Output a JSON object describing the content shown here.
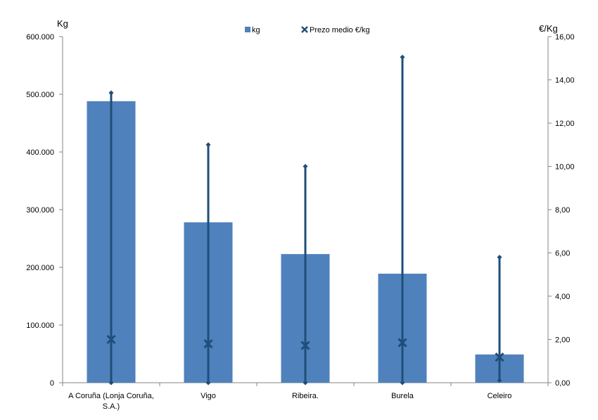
{
  "chart_data": {
    "type": "bar",
    "categories": [
      [
        "A Coruña (Lonja Coruña,",
        "S.A.)"
      ],
      [
        "Vigo"
      ],
      [
        "Ribeira."
      ],
      [
        "Burela"
      ],
      [
        "Celeiro"
      ]
    ],
    "series": [
      {
        "name": "kg",
        "axis": "left",
        "type": "bar",
        "values": [
          488000,
          278000,
          223000,
          189000,
          49000
        ]
      },
      {
        "name": "Prezo medio €/kg",
        "axis": "right",
        "type": "marker",
        "values": [
          2.0,
          1.8,
          1.72,
          1.85,
          1.18
        ]
      }
    ],
    "price_range": {
      "min": [
        0.0,
        0.0,
        0.0,
        0.0,
        0.1
      ],
      "max": [
        13.4,
        11.0,
        10.0,
        15.05,
        5.8
      ]
    },
    "left_axis": {
      "label": "Kg",
      "ylim": [
        0,
        600000
      ],
      "ticks": [
        "0",
        "100.000",
        "200.000",
        "300.000",
        "400.000",
        "500.000",
        "600.000"
      ]
    },
    "right_axis": {
      "label": "€/Kg",
      "ylim": [
        0,
        16
      ],
      "ticks": [
        "0,00",
        "2,00",
        "4,00",
        "6,00",
        "8,00",
        "10,00",
        "12,00",
        "14,00",
        "16,00"
      ]
    },
    "legend": {
      "position": "top-center",
      "entries": [
        "kg",
        "Prezo medio €/kg"
      ]
    },
    "colors": {
      "bar": "#4F81BD",
      "line": "#1F4E79"
    }
  }
}
